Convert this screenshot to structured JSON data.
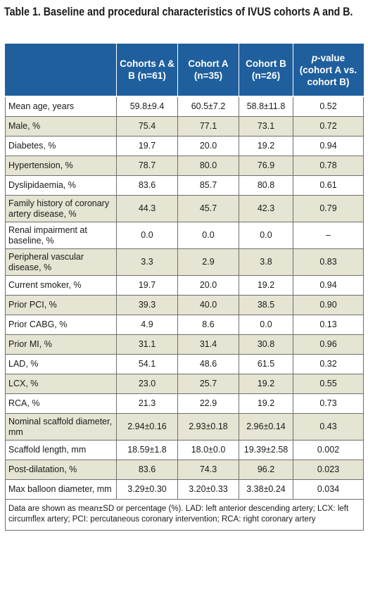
{
  "title": "Table 1. Baseline and procedural characteristics of IVUS cohorts A and B.",
  "header": {
    "col0": "",
    "col1": "Cohorts A & B (n=61)",
    "col2": "Cohort A (n=35)",
    "col3": "Cohort B (n=26)",
    "col4_italic": "p",
    "col4_rest": "-value (cohort A vs. cohort B)"
  },
  "rows": [
    {
      "label": "Mean age, years",
      "ab": "59.8±9.4",
      "a": "60.5±7.2",
      "b": "58.8±11.8",
      "p": "0.52"
    },
    {
      "label": "Male, %",
      "ab": "75.4",
      "a": "77.1",
      "b": "73.1",
      "p": "0.72"
    },
    {
      "label": "Diabetes, %",
      "ab": "19.7",
      "a": "20.0",
      "b": "19.2",
      "p": "0.94"
    },
    {
      "label": "Hypertension, %",
      "ab": "78.7",
      "a": "80.0",
      "b": "76.9",
      "p": "0.78"
    },
    {
      "label": "Dyslipidaemia, %",
      "ab": "83.6",
      "a": "85.7",
      "b": "80.8",
      "p": "0.61"
    },
    {
      "label": "Family history of coronary artery disease, %",
      "ab": "44.3",
      "a": "45.7",
      "b": "42.3",
      "p": "0.79"
    },
    {
      "label": "Renal impairment at baseline, %",
      "ab": "0.0",
      "a": "0.0",
      "b": "0.0",
      "p": "–"
    },
    {
      "label": "Peripheral vascular disease, %",
      "ab": "3.3",
      "a": "2.9",
      "b": "3.8",
      "p": "0.83"
    },
    {
      "label": "Current smoker, %",
      "ab": "19.7",
      "a": "20.0",
      "b": "19.2",
      "p": "0.94"
    },
    {
      "label": "Prior PCI, %",
      "ab": "39.3",
      "a": "40.0",
      "b": "38.5",
      "p": "0.90"
    },
    {
      "label": "Prior CABG, %",
      "ab": "4.9",
      "a": "8.6",
      "b": "0.0",
      "p": "0.13"
    },
    {
      "label": "Prior MI, %",
      "ab": "31.1",
      "a": "31.4",
      "b": "30.8",
      "p": "0.96"
    },
    {
      "label": "LAD, %",
      "ab": "54.1",
      "a": "48.6",
      "b": "61.5",
      "p": "0.32"
    },
    {
      "label": "LCX, %",
      "ab": "23.0",
      "a": "25.7",
      "b": "19.2",
      "p": "0.55"
    },
    {
      "label": "RCA, %",
      "ab": "21.3",
      "a": "22.9",
      "b": "19.2",
      "p": "0.73"
    },
    {
      "label": "Nominal scaffold diameter, mm",
      "ab": "2.94±0.16",
      "a": "2.93±0.18",
      "b": "2.96±0.14",
      "p": "0.43"
    },
    {
      "label": "Scaffold length, mm",
      "ab": "18.59±1.8",
      "a": "18.0±0.0",
      "b": "19.39±2.58",
      "p": "0.002"
    },
    {
      "label": "Post-dilatation, %",
      "ab": "83.6",
      "a": "74.3",
      "b": "96.2",
      "p": "0.023"
    },
    {
      "label": "Max balloon diameter, mm",
      "ab": "3.29±0.30",
      "a": "3.20±0.33",
      "b": "3.38±0.24",
      "p": "0.034"
    }
  ],
  "footnote": "Data are shown as mean±SD or percentage (%). LAD: left anterior descending artery; LCX: left circumflex artery; PCI: percutaneous coronary intervention; RCA: right coronary artery"
}
